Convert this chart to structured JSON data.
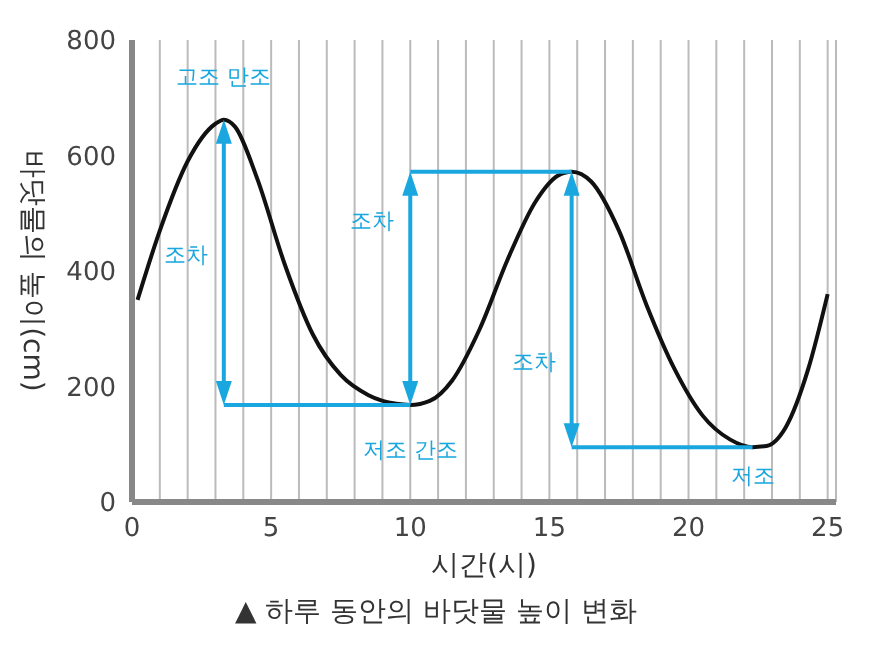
{
  "chart_data": {
    "type": "line",
    "xlabel": "시간(시)",
    "ylabel": "바닷물의 높이(cm)",
    "x": [
      0.2,
      1,
      2,
      3,
      3.3,
      3.7,
      4.5,
      5.5,
      6.5,
      7.5,
      8.5,
      9.5,
      10,
      10.7,
      11.5,
      12.5,
      13.5,
      14.5,
      15.3,
      15.8,
      16.5,
      17.5,
      18.5,
      19.5,
      20.5,
      21.5,
      22.3,
      22.8,
      23.5,
      24.3,
      25
    ],
    "series": [
      {
        "color": "#111111",
        "values": [
          350,
          470,
          590,
          655,
          662,
          650,
          560,
          410,
          290,
          220,
          185,
          170,
          168,
          175,
          210,
          300,
          420,
          520,
          565,
          572,
          555,
          470,
          340,
          230,
          150,
          108,
          95,
          97,
          130,
          230,
          360
        ]
      }
    ],
    "xlim": [
      0,
      25.3
    ],
    "ylim": [
      0,
      800
    ],
    "xticks": [
      0,
      {
        "value": 1,
        "label": null
      },
      {
        "value": 2,
        "label": null
      },
      {
        "value": 3,
        "label": null
      },
      {
        "value": 4,
        "label": null
      },
      5,
      {
        "value": 6,
        "label": null
      },
      {
        "value": 7,
        "label": null
      },
      {
        "value": 8,
        "label": null
      },
      {
        "value": 9,
        "label": null
      },
      10,
      {
        "value": 11,
        "label": null
      },
      {
        "value": 12,
        "label": null
      },
      {
        "value": 13,
        "label": null
      },
      {
        "value": 14,
        "label": null
      },
      15,
      {
        "value": 16,
        "label": null
      },
      {
        "value": 17,
        "label": null
      },
      {
        "value": 18,
        "label": null
      },
      {
        "value": 19,
        "label": null
      },
      20,
      {
        "value": 21,
        "label": null
      },
      {
        "value": 22,
        "label": null
      },
      {
        "value": 23,
        "label": null
      },
      {
        "value": 24,
        "label": null
      },
      25
    ],
    "yticks": [
      0,
      200,
      400,
      600,
      800
    ],
    "grid": "x",
    "marker": "none",
    "line_style": "solid",
    "legend": false,
    "annotations": [
      {
        "text": "고조 만조",
        "x": 3.3,
        "y": 662
      },
      "조차",
      "조차",
      "조차",
      {
        "text": "저조 간조",
        "x": 10,
        "y": 168
      },
      {
        "text": "저조",
        "x": 22.3,
        "y": 95
      },
      "▲ 하루 동안의 바닷물 높이 변화"
    ]
  }
}
